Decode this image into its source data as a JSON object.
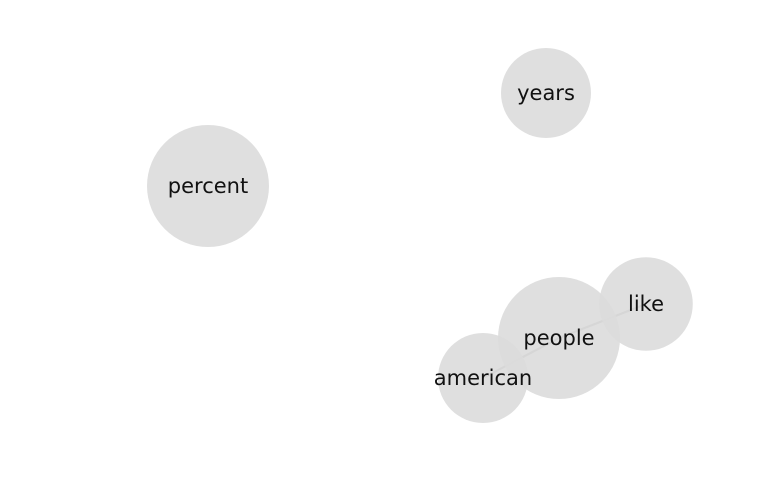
{
  "graph": {
    "nodes": [
      {
        "id": "years",
        "label": "years",
        "weight": 0.55
      },
      {
        "id": "percent",
        "label": "percent",
        "weight": 1.0
      },
      {
        "id": "people",
        "label": "people",
        "weight": 1.0
      },
      {
        "id": "like",
        "label": "like",
        "weight": 0.6
      },
      {
        "id": "american",
        "label": "american",
        "weight": 0.55
      }
    ],
    "edges": [
      {
        "from": "american",
        "to": "people"
      },
      {
        "from": "people",
        "to": "like"
      }
    ],
    "colors": {
      "node_fill": "#dcdcdc",
      "edge": "#a6a6a6",
      "label": "#111111"
    }
  }
}
